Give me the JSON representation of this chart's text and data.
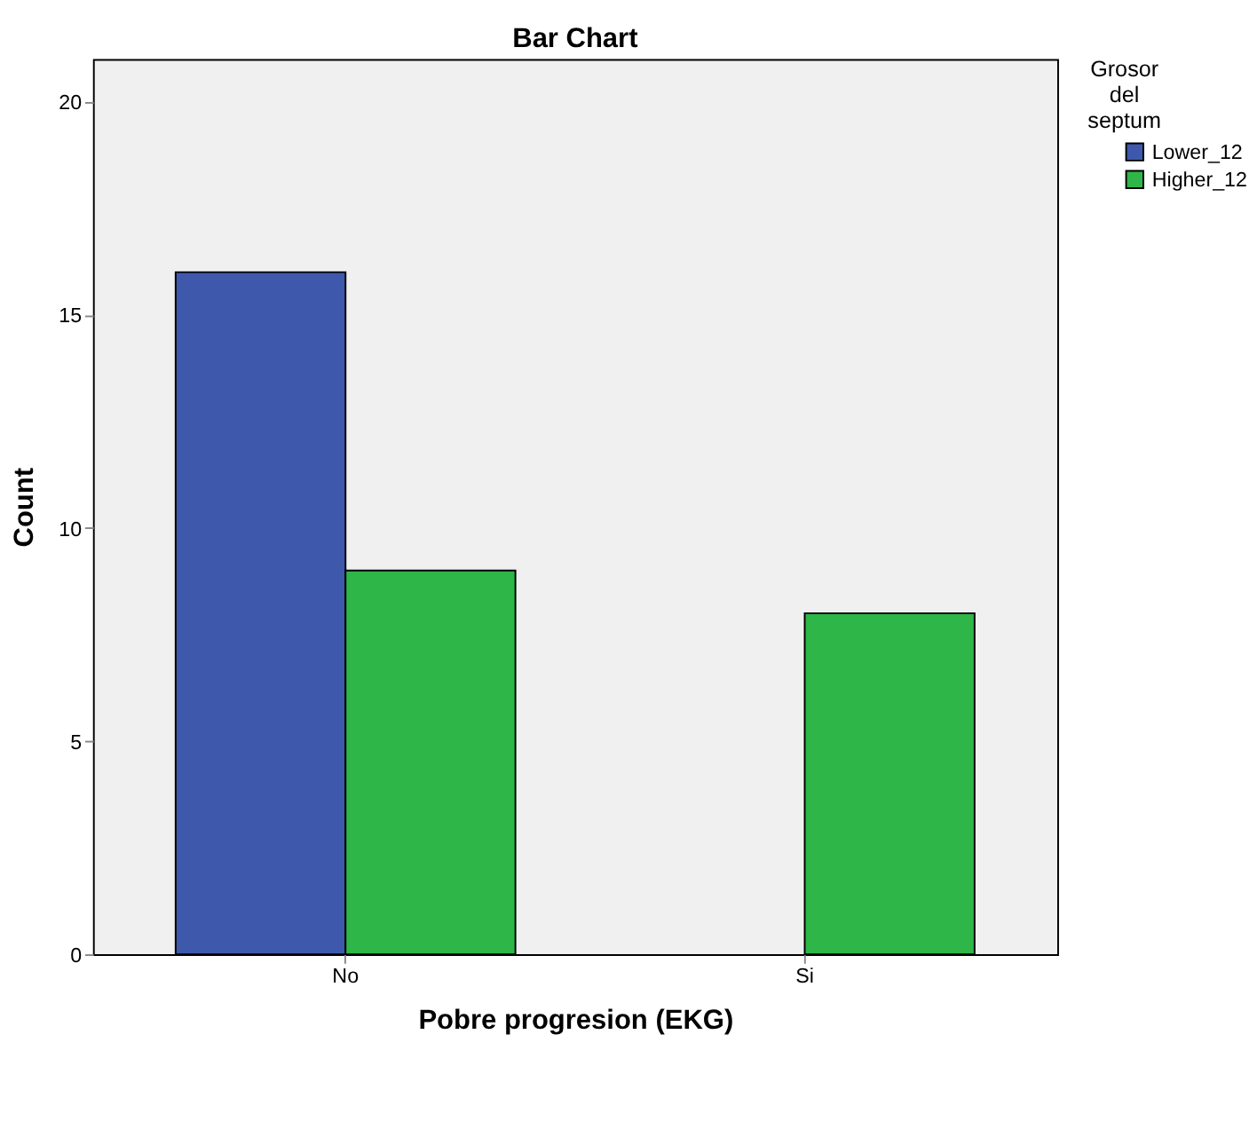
{
  "chart_data": {
    "type": "bar",
    "title": "Bar Chart",
    "xlabel": "Pobre progresion (EKG)",
    "ylabel": "Count",
    "legend_title": "Grosor del septum",
    "categories": [
      "No",
      "Si"
    ],
    "series": [
      {
        "name": "Lower_12",
        "color": "#3e58ac",
        "values": [
          16,
          null
        ]
      },
      {
        "name": "Higher_12",
        "color": "#2eb648",
        "values": [
          9,
          8
        ]
      }
    ],
    "ylim": [
      0,
      21
    ],
    "yticks": [
      0,
      5,
      10,
      15,
      20
    ],
    "grid": false,
    "legend": "right"
  }
}
